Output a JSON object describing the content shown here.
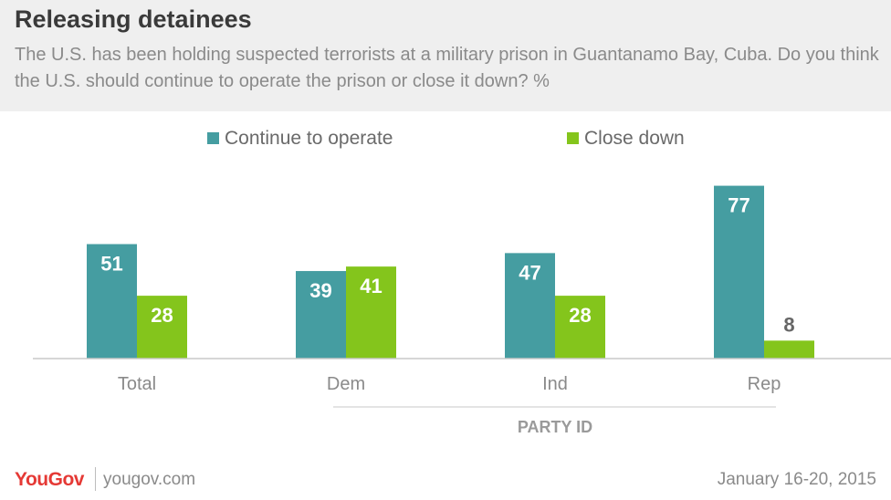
{
  "header": {
    "title": "Releasing detainees",
    "subtitle": "The U.S. has been holding suspected terrorists at a military prison in Guantanamo Bay, Cuba. Do you think the U.S. should continue to operate the prison or close it down? %"
  },
  "chart_data": {
    "type": "bar",
    "categories": [
      "Total",
      "Dem",
      "Ind",
      "Rep"
    ],
    "series": [
      {
        "name": "Continue to operate",
        "values": [
          51,
          39,
          47,
          77
        ],
        "color": "#459da1"
      },
      {
        "name": "Close down",
        "values": [
          28,
          41,
          28,
          8
        ],
        "color": "#84c51c"
      }
    ],
    "group_label": "PARTY ID",
    "legend_position": "top",
    "grid": false,
    "ylim": [
      0,
      80
    ]
  },
  "footer": {
    "brand": "YouGov",
    "url": "yougov.com",
    "date": "January 16-20, 2015"
  },
  "colors": {
    "header_bg": "#efefef",
    "brand": "#e53935",
    "text_dark": "#3a3a3a",
    "text_muted": "#8a8a8a"
  }
}
